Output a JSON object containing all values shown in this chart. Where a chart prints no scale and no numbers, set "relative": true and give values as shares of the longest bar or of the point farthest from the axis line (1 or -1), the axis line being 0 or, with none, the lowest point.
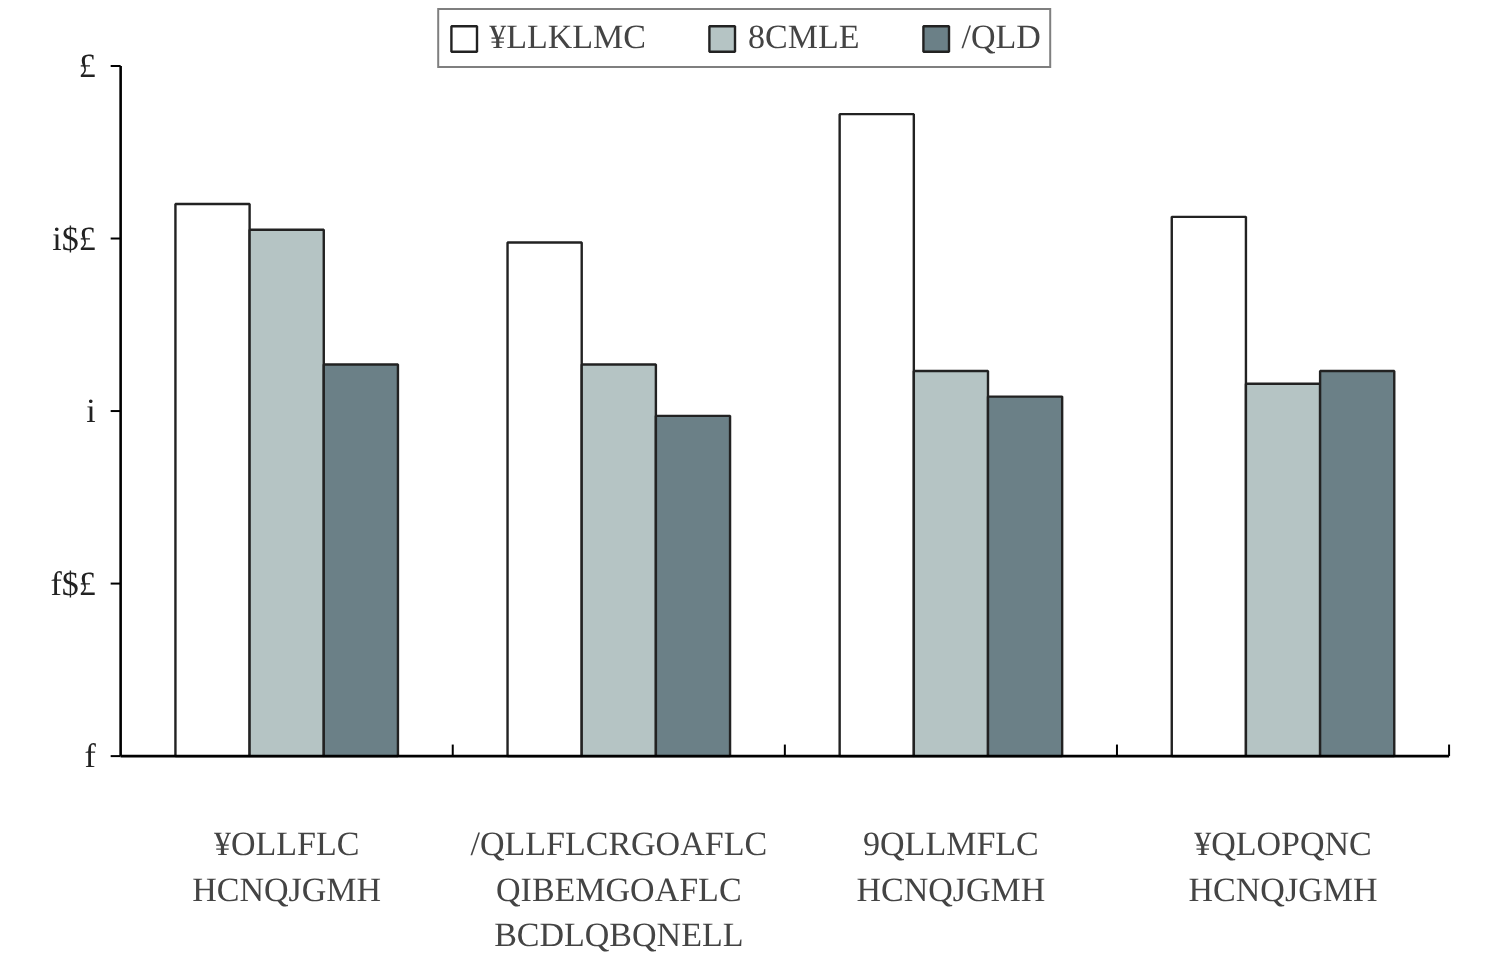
{
  "chart_data": {
    "type": "bar",
    "relative": true,
    "categories": [
      "¥OLLFLC\nHCNQJGMH",
      "/QLLFLCRGOAFLC\nQIBEMGOAFLC\nBCDLQBQNELL",
      "9QLLMFLC\nHCNQJGMH",
      "¥QLOPQNC\nHCNQJGMH"
    ],
    "series": [
      {
        "name": "¥LLKLMC",
        "color": "#ffffff",
        "values": [
          0.86,
          0.8,
          1,
          0.84
        ]
      },
      {
        "name": "8CMLE",
        "color": "#b5c4c4",
        "values": [
          0.82,
          0.61,
          0.6,
          0.58
        ]
      },
      {
        "name": "/QLD",
        "color": "#6b8087",
        "values": [
          0.61,
          0.53,
          0.56,
          0.6
        ]
      }
    ],
    "annotations": [
      "f",
      "f$£",
      "i",
      "i$£",
      "£"
    ],
    "grid": false,
    "legend": "top"
  }
}
